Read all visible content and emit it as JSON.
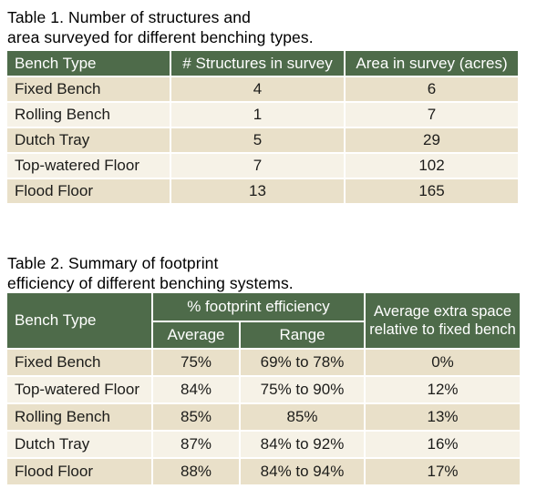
{
  "colors": {
    "header_green": "#4e6b4a",
    "row_tan_dark": "#e9e0c9",
    "row_cream_light": "#f6f2e7",
    "separator_white": "#ffffff",
    "header_text": "#ffffff",
    "body_text": "#1c1c1a"
  },
  "table1": {
    "title_line1": "Table 1.  Number of structures and",
    "title_line2": "area surveyed for different benching types.",
    "columns": {
      "bench_type": "Bench Type",
      "structures": "# Structures in survey",
      "area": "Area in survey (acres)"
    },
    "rows": [
      {
        "bench_type": "Fixed Bench",
        "structures": "4",
        "area": "6"
      },
      {
        "bench_type": "Rolling Bench",
        "structures": "1",
        "area": "7"
      },
      {
        "bench_type": "Dutch Tray",
        "structures": "5",
        "area": "29"
      },
      {
        "bench_type": "Top-watered Floor",
        "structures": "7",
        "area": "102"
      },
      {
        "bench_type": "Flood Floor",
        "structures": "13",
        "area": "165"
      }
    ]
  },
  "table2": {
    "title_line1": "Table 2.  Summary of footprint",
    "title_line2": "efficiency of different benching systems.",
    "columns": {
      "bench_type": "Bench Type",
      "efficiency_group": "% footprint efficiency",
      "average": "Average",
      "range": "Range",
      "extra_space": "Average extra space relative to fixed bench"
    },
    "rows": [
      {
        "bench_type": "Fixed Bench",
        "average": "75%",
        "range": "69% to 78%",
        "extra": "0%"
      },
      {
        "bench_type": "Top-watered Floor",
        "average": "84%",
        "range": "75% to 90%",
        "extra": "12%"
      },
      {
        "bench_type": "Rolling Bench",
        "average": "85%",
        "range": "85%",
        "extra": "13%"
      },
      {
        "bench_type": "Dutch Tray",
        "average": "87%",
        "range": "84% to 92%",
        "extra": "16%"
      },
      {
        "bench_type": "Flood Floor",
        "average": "88%",
        "range": "84% to 94%",
        "extra": "17%"
      }
    ]
  }
}
